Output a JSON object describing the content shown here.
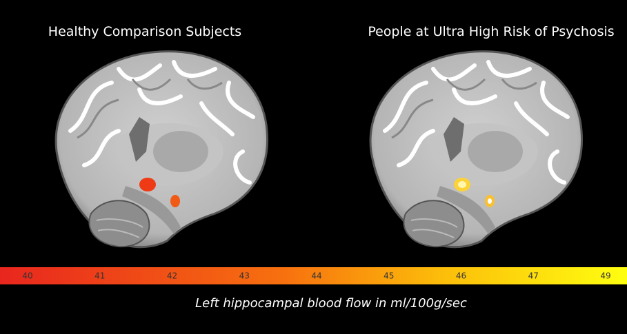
{
  "panels": [
    {
      "title": "Healthy Comparison Subjects"
    },
    {
      "title": "People at Ultra High Risk of Psychosis"
    }
  ],
  "colorbar": {
    "ticks": [
      40,
      41,
      42,
      43,
      44,
      45,
      46,
      47,
      49
    ]
  },
  "caption": "Left hippocampal blood flow in ml/100g/sec"
}
